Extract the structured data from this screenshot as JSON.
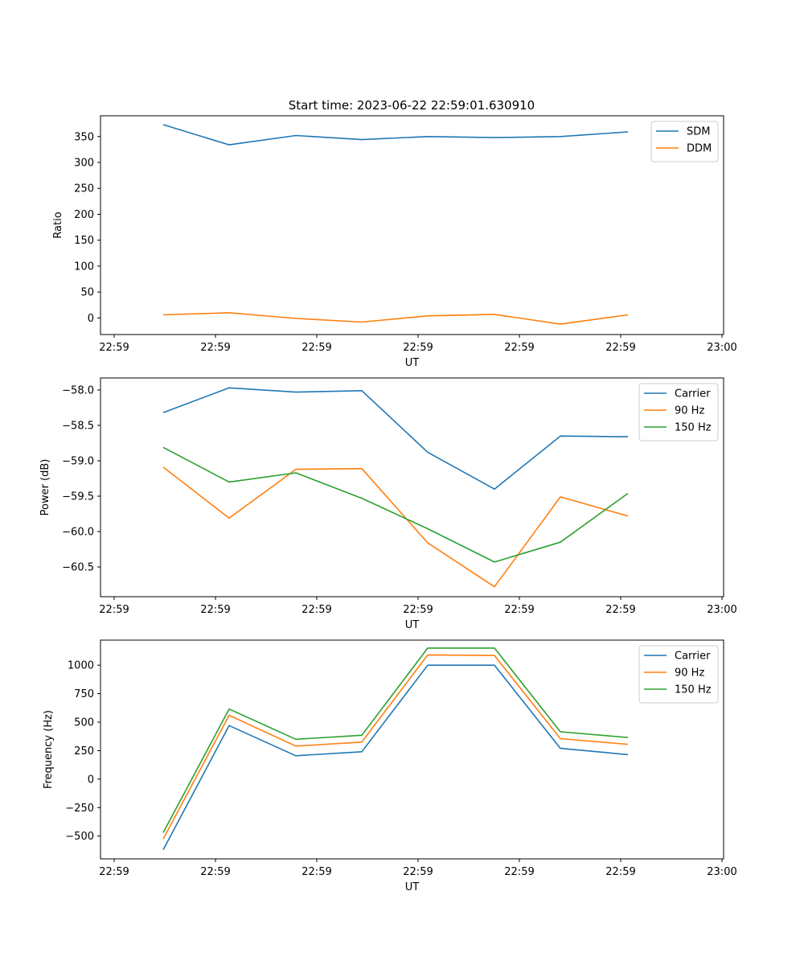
{
  "figure": {
    "title": "Start time: 2023-06-22 22:59:01.630910"
  },
  "colors": {
    "blue": "#1f77b4",
    "orange": "#ff7f0e",
    "green": "#2ca02c"
  },
  "chart_data": [
    {
      "type": "line",
      "ylabel": "Ratio",
      "xlabel": "UT",
      "xtick_labels": [
        "22:59",
        "22:59",
        "22:59",
        "22:59",
        "22:59",
        "22:59",
        "23:00"
      ],
      "yticks": [
        0,
        50,
        100,
        150,
        200,
        250,
        300,
        350
      ],
      "ylim": [
        -32,
        390
      ],
      "legend": "top-right",
      "series": [
        {
          "name": "SDM",
          "color": "#1f77b4",
          "values": [
            373,
            334,
            352,
            344,
            350,
            348,
            350,
            359
          ]
        },
        {
          "name": "DDM",
          "color": "#ff7f0e",
          "values": [
            6,
            10,
            -1,
            -8,
            4,
            7,
            -12,
            6
          ]
        }
      ]
    },
    {
      "type": "line",
      "ylabel": "Power (dB)",
      "xlabel": "UT",
      "xtick_labels": [
        "22:59",
        "22:59",
        "22:59",
        "22:59",
        "22:59",
        "22:59",
        "23:00"
      ],
      "yticks": [
        -60.5,
        -60.0,
        -59.5,
        -59.0,
        -58.5,
        -58.0
      ],
      "ytick_labels": [
        "−60.5",
        "−60.0",
        "−59.5",
        "−59.0",
        "−58.5",
        "−58.0"
      ],
      "ylim": [
        -60.92,
        -57.83
      ],
      "legend": "top-right",
      "series": [
        {
          "name": "Carrier",
          "color": "#1f77b4",
          "values": [
            -58.32,
            -57.97,
            -58.03,
            -58.01,
            -58.88,
            -59.4,
            -58.65,
            -58.66
          ]
        },
        {
          "name": "90 Hz",
          "color": "#ff7f0e",
          "values": [
            -59.09,
            -59.81,
            -59.12,
            -59.11,
            -60.16,
            -60.78,
            -59.51,
            -59.78
          ]
        },
        {
          "name": "150 Hz",
          "color": "#2ca02c",
          "values": [
            -58.81,
            -59.3,
            -59.17,
            -59.53,
            -59.96,
            -60.43,
            -60.15,
            -59.46
          ]
        }
      ]
    },
    {
      "type": "line",
      "ylabel": "Frequency (Hz)",
      "xlabel": "UT",
      "xtick_labels": [
        "22:59",
        "22:59",
        "22:59",
        "22:59",
        "22:59",
        "22:59",
        "23:00"
      ],
      "yticks": [
        -500,
        -250,
        0,
        250,
        500,
        750,
        1000
      ],
      "ytick_labels": [
        "−500",
        "−250",
        "0",
        "250",
        "500",
        "750",
        "1000"
      ],
      "ylim": [
        -700,
        1220
      ],
      "legend": "top-right",
      "series": [
        {
          "name": "Carrier",
          "color": "#1f77b4",
          "values": [
            -620,
            470,
            205,
            240,
            1000,
            1000,
            270,
            215
          ]
        },
        {
          "name": "90 Hz",
          "color": "#ff7f0e",
          "values": [
            -525,
            560,
            290,
            325,
            1090,
            1085,
            355,
            305
          ]
        },
        {
          "name": "150 Hz",
          "color": "#2ca02c",
          "values": [
            -470,
            615,
            350,
            385,
            1150,
            1150,
            415,
            365
          ]
        }
      ]
    }
  ]
}
